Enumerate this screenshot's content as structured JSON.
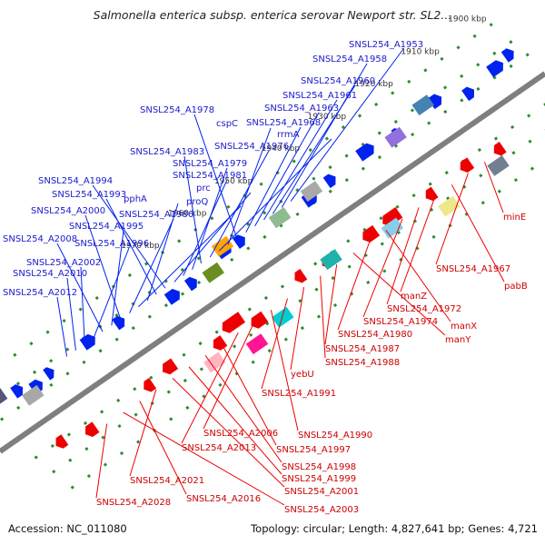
{
  "title": "Salmonella enterica subsp. enterica serovar Newport str. SL2...",
  "footer": {
    "accession": "Accession: NC_011080",
    "topology": "Topology: circular; Length: 4,827,641 bp; Genes: 4,721"
  },
  "colors": {
    "forward_gene": "#0022ee",
    "reverse_gene": "#ee0000",
    "forward_label": "#1a1acc",
    "reverse_label": "#cc0000",
    "backbone": "#7f7f7f",
    "tick": "#2e8b2e"
  },
  "scale_ticks": [
    "1900 kbp",
    "1910 kbp",
    "1920 kbp",
    "1930 kbp",
    "1940 kbp",
    "1950 kbp",
    "1960 kbp",
    "1970 kbp"
  ],
  "forward_labels": [
    "SNSL254_A1953",
    "SNSL254_A1958",
    "SNSL254_A1960",
    "SNSL254_A1961",
    "SNSL254_A1963",
    "SNSL254_A1968",
    "SNSL254_A1978",
    "cspC",
    "rrmA",
    "SNSL254_A1976",
    "SNSL254_A1983",
    "SNSL254_A1979",
    "SNSL254_A1981",
    "prc",
    "SNSL254_A1994",
    "SNSL254_A1993",
    "pphA",
    "proQ",
    "SNSL254_A1986",
    "SNSL254_A2000",
    "SNSL254_A1995",
    "SNSL254_A2008",
    "SNSL254_A1996",
    "SNSL254_A2002",
    "SNSL254_A2010",
    "SNSL254_A2012"
  ],
  "reverse_labels": [
    "minE",
    "SNSL254_A1967",
    "pabB",
    "manZ",
    "SNSL254_A1972",
    "SNSL254_A1974",
    "manX",
    "SNSL254_A1980",
    "manY",
    "SNSL254_A1987",
    "SNSL254_A1988",
    "yebU",
    "SNSL254_A1991",
    "SNSL254_A1990",
    "SNSL254_A2006",
    "SNSL254_A2013",
    "SNSL254_A1997",
    "SNSL254_A1998",
    "SNSL254_A1999",
    "SNSL254_A2001",
    "SNSL254_A2021",
    "SNSL254_A2016",
    "SNSL254_A2003",
    "SNSL254_A2028"
  ]
}
